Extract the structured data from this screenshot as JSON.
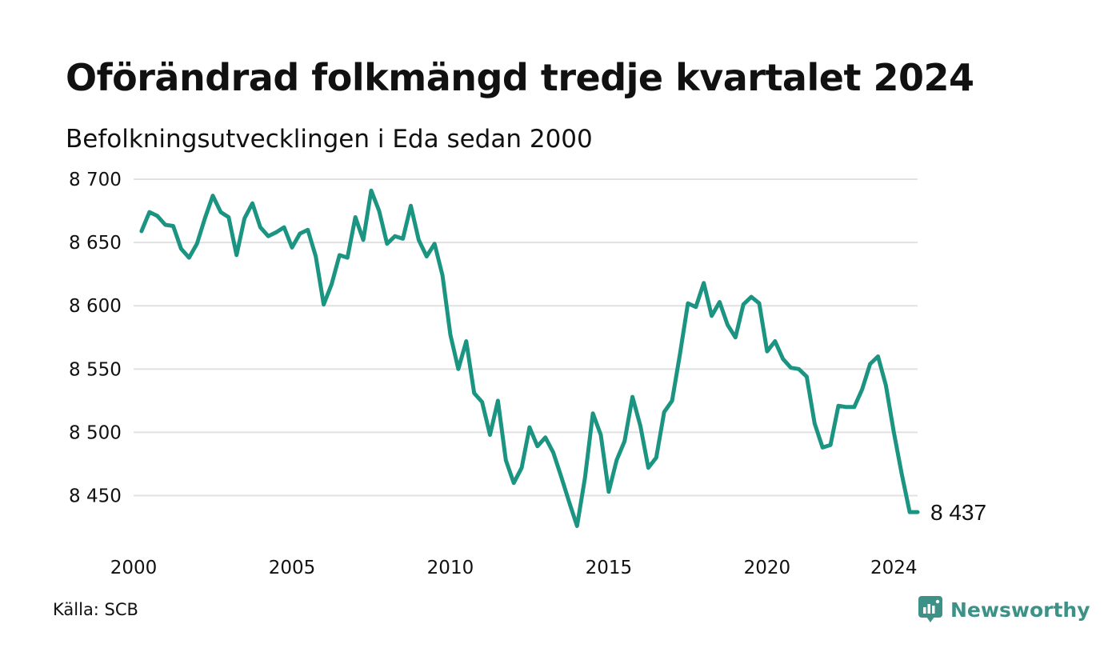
{
  "header": {
    "title": "Oförändrad folkmängd tredje kvartalet 2024",
    "subtitle": "Befolkningsutvecklingen i Eda sedan 2000"
  },
  "footer": {
    "source": "Källa: SCB",
    "brand": "Newsworthy"
  },
  "colors": {
    "line": "#1b9482",
    "grid": "#e1e1e1",
    "brand": "#3d9186"
  },
  "chart_data": {
    "type": "line",
    "title": "Oförändrad folkmängd tredje kvartalet 2024",
    "subtitle": "Befolkningsutvecklingen i Eda sedan 2000",
    "x_ticks": [
      2000,
      2005,
      2010,
      2015,
      2020,
      2024
    ],
    "x_tick_labels": [
      "2000",
      "2005",
      "2010",
      "2015",
      "2020",
      "2024"
    ],
    "y_ticks": [
      8450,
      8500,
      8550,
      8600,
      8650,
      8700
    ],
    "y_tick_labels": [
      "8 450",
      "8 500",
      "8 550",
      "8 600",
      "8 650",
      "8 700"
    ],
    "xlim": [
      2000,
      2024.75
    ],
    "ylim": [
      8420,
      8700
    ],
    "grid": true,
    "last_value_label": "8 437",
    "series": [
      {
        "x_start": 2000.25,
        "step": 0.25,
        "values": [
          8659,
          8674,
          8671,
          8664,
          8663,
          8645,
          8638,
          8649,
          8669,
          8687,
          8674,
          8670,
          8640,
          8669,
          8681,
          8662,
          8655,
          8658,
          8662,
          8646,
          8657,
          8660,
          8639,
          8601,
          8617,
          8640,
          8638,
          8670,
          8652,
          8691,
          8675,
          8649,
          8655,
          8653,
          8679,
          8652,
          8639,
          8649,
          8624,
          8577,
          8550,
          8572,
          8531,
          8524,
          8498,
          8525,
          8478,
          8460,
          8472,
          8504,
          8489,
          8496,
          8484,
          8465,
          8445,
          8426,
          8464,
          8515,
          8498,
          8453,
          8478,
          8493,
          8528,
          8505,
          8472,
          8480,
          8516,
          8525,
          8562,
          8602,
          8599,
          8618,
          8592,
          8603,
          8585,
          8575,
          8601,
          8607,
          8602,
          8564,
          8572,
          8558,
          8551,
          8550,
          8544,
          8507,
          8488,
          8490,
          8521,
          8520,
          8520,
          8534,
          8554,
          8560,
          8537,
          8500,
          8467,
          8437,
          8437
        ]
      }
    ]
  }
}
